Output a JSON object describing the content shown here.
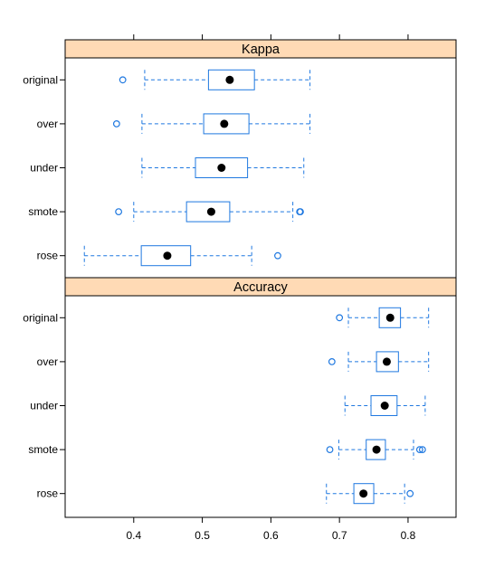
{
  "chart_data": {
    "type": "box",
    "x_ticks": [
      0.4,
      0.5,
      0.6,
      0.7,
      0.8
    ],
    "xlim": [
      0.3,
      0.87
    ],
    "colors": {
      "box": "#1f78e0",
      "median": "#000000",
      "strip": "#ffdab5",
      "frame": "#000000"
    },
    "panels": [
      {
        "title": "Kappa",
        "categories": [
          {
            "name": "original",
            "whisker_low": 0.416,
            "q1": 0.509,
            "median": 0.54,
            "q3": 0.576,
            "whisker_high": 0.657,
            "outliers": [
              0.384
            ]
          },
          {
            "name": "over",
            "whisker_low": 0.412,
            "q1": 0.502,
            "median": 0.532,
            "q3": 0.568,
            "whisker_high": 0.657,
            "outliers": [
              0.375
            ]
          },
          {
            "name": "under",
            "whisker_low": 0.412,
            "q1": 0.49,
            "median": 0.528,
            "q3": 0.566,
            "whisker_high": 0.648,
            "outliers": []
          },
          {
            "name": "smote",
            "whisker_low": 0.4,
            "q1": 0.477,
            "median": 0.513,
            "q3": 0.54,
            "whisker_high": 0.632,
            "outliers": [
              0.378,
              0.642,
              0.643
            ]
          },
          {
            "name": "rose",
            "whisker_low": 0.328,
            "q1": 0.411,
            "median": 0.449,
            "q3": 0.483,
            "whisker_high": 0.572,
            "outliers": [
              0.61
            ]
          }
        ]
      },
      {
        "title": "Accuracy",
        "categories": [
          {
            "name": "original",
            "whisker_low": 0.713,
            "q1": 0.758,
            "median": 0.774,
            "q3": 0.789,
            "whisker_high": 0.83,
            "outliers": [
              0.7
            ]
          },
          {
            "name": "over",
            "whisker_low": 0.713,
            "q1": 0.754,
            "median": 0.769,
            "q3": 0.786,
            "whisker_high": 0.83,
            "outliers": [
              0.689
            ]
          },
          {
            "name": "under",
            "whisker_low": 0.708,
            "q1": 0.746,
            "median": 0.766,
            "q3": 0.784,
            "whisker_high": 0.825,
            "outliers": []
          },
          {
            "name": "smote",
            "whisker_low": 0.699,
            "q1": 0.739,
            "median": 0.754,
            "q3": 0.767,
            "whisker_high": 0.808,
            "outliers": [
              0.686,
              0.817,
              0.821
            ]
          },
          {
            "name": "rose",
            "whisker_low": 0.681,
            "q1": 0.721,
            "median": 0.735,
            "q3": 0.75,
            "whisker_high": 0.795,
            "outliers": [
              0.803
            ]
          }
        ]
      }
    ]
  }
}
